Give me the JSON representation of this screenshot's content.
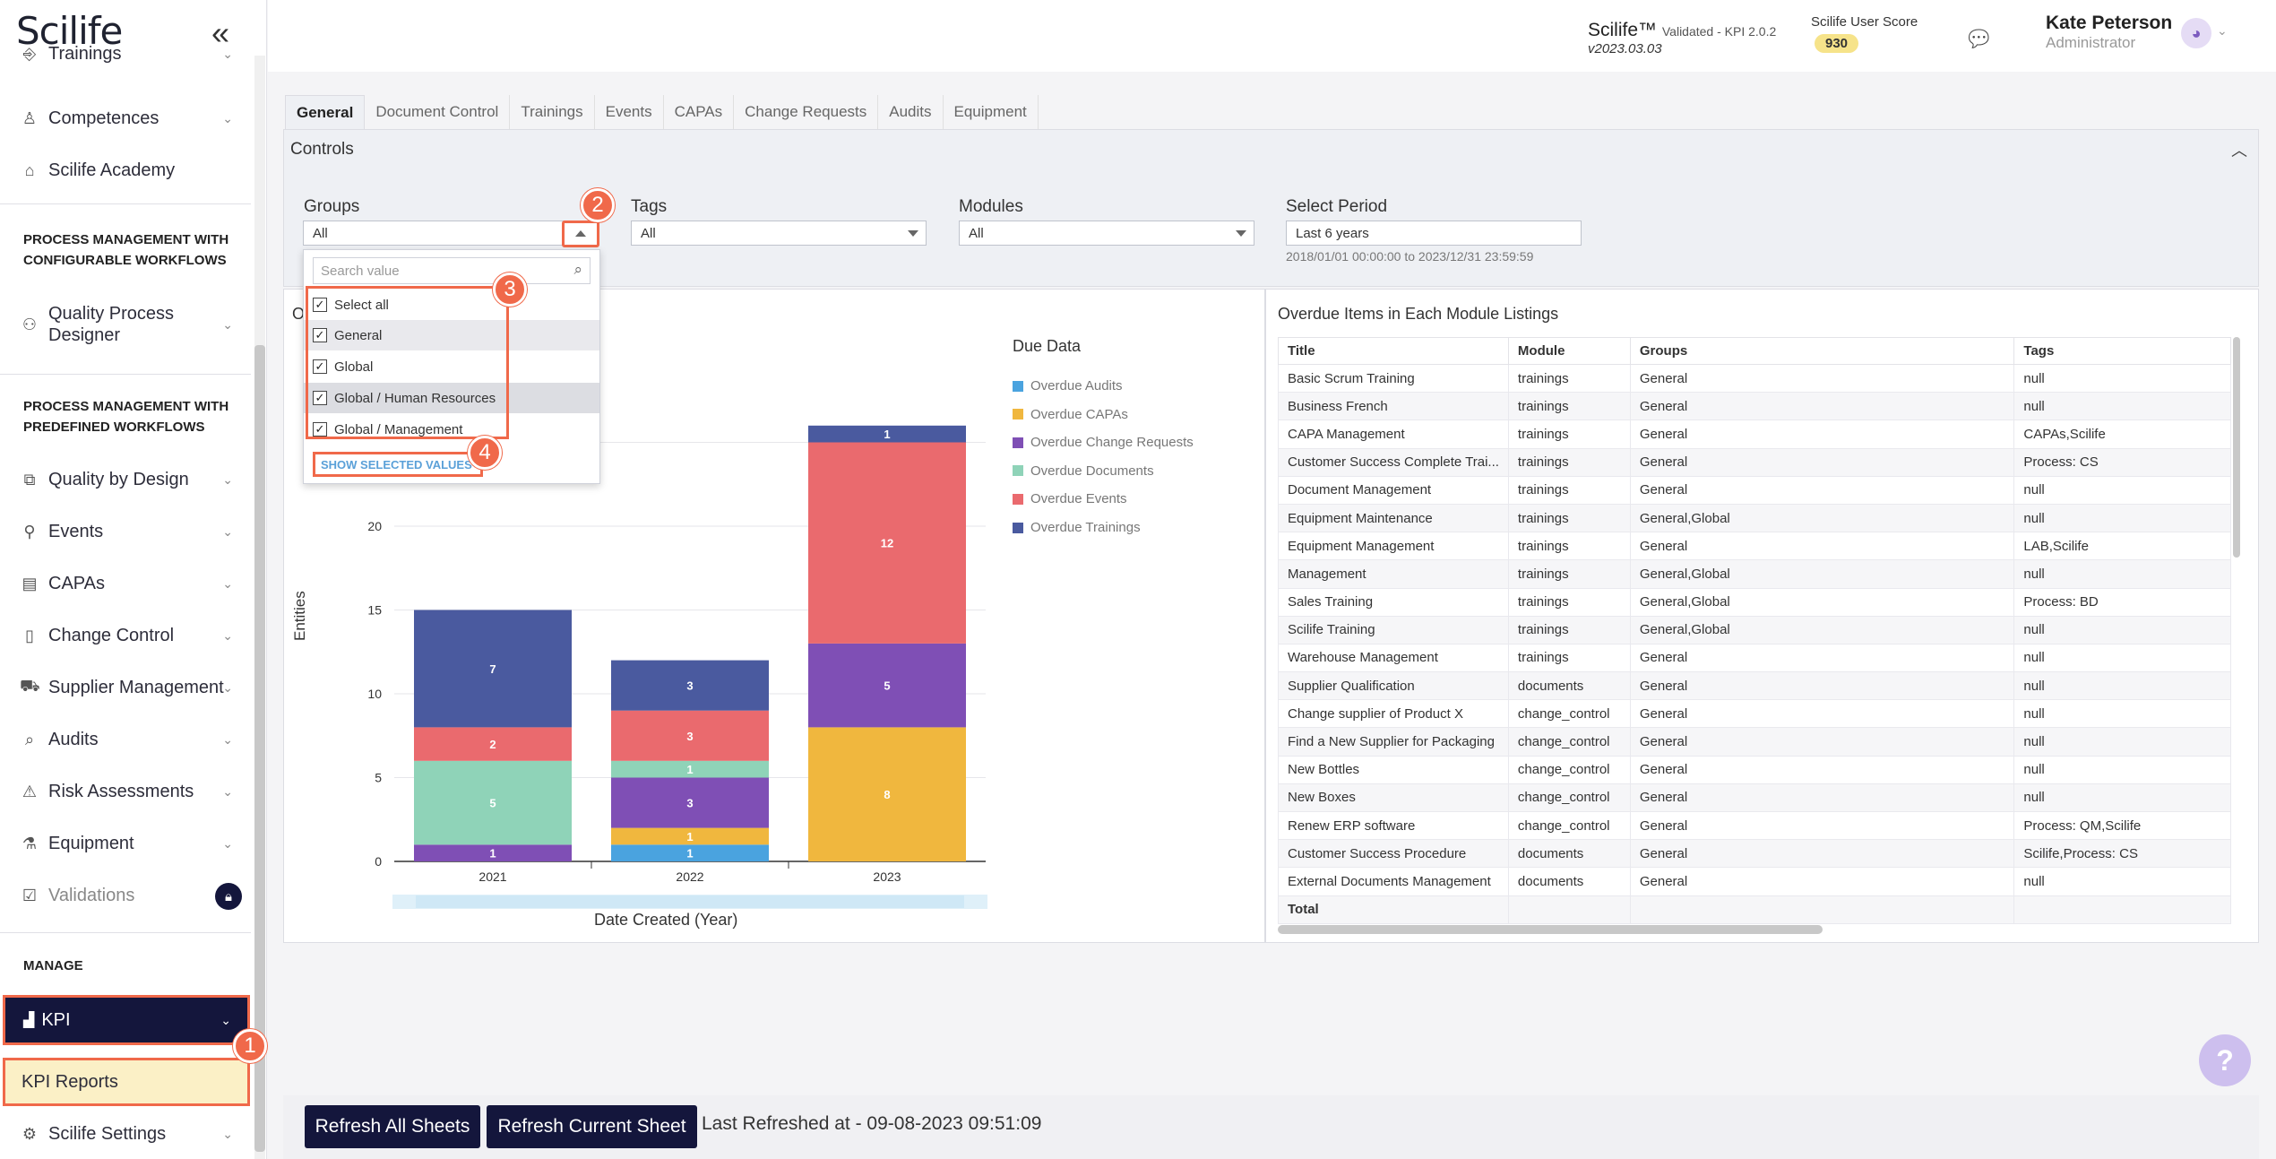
{
  "app": {
    "logo": "Scilife",
    "collapse_icon": "double-chevron-left-icon"
  },
  "sidebar": {
    "items": [
      {
        "label": "Trainings",
        "icon": "book-icon"
      },
      {
        "label": "Competences",
        "icon": "person-star-icon"
      },
      {
        "label": "Scilife Academy",
        "icon": "graduation-cap-icon"
      },
      {
        "label": "Quality Process Designer",
        "icon": "workflow-icon"
      },
      {
        "label": "Quality by Design",
        "icon": "layers-icon"
      },
      {
        "label": "Events",
        "icon": "pin-icon"
      },
      {
        "label": "CAPAs",
        "icon": "clipboard-icon"
      },
      {
        "label": "Change Control",
        "icon": "document-icon"
      },
      {
        "label": "Supplier Management",
        "icon": "truck-icon"
      },
      {
        "label": "Audits",
        "icon": "magnifier-doc-icon"
      },
      {
        "label": "Risk Assessments",
        "icon": "warning-icon"
      },
      {
        "label": "Equipment",
        "icon": "flask-icon"
      },
      {
        "label": "Validations",
        "icon": "checklist-icon"
      }
    ],
    "sections": {
      "configurable": "PROCESS MANAGEMENT WITH CONFIGURABLE WORKFLOWS",
      "predefined": "PROCESS MANAGEMENT WITH PREDEFINED WORKFLOWS",
      "manage": "MANAGE"
    },
    "kpi": "KPI",
    "kpi_reports": "KPI Reports",
    "settings": "Scilife Settings"
  },
  "header": {
    "brand": "Scilife™",
    "brand_note": "Validated - KPI 2.0.2",
    "version": "v2023.03.03",
    "score_label": "Scilife User Score",
    "score": "930",
    "user_name": "Kate Peterson",
    "user_role": "Administrator"
  },
  "tabs": [
    "General",
    "Document Control",
    "Trainings",
    "Events",
    "CAPAs",
    "Change Requests",
    "Audits",
    "Equipment"
  ],
  "controls": {
    "title": "Controls",
    "groups_label": "Groups",
    "groups_value": "All",
    "tags_label": "Tags",
    "tags_value": "All",
    "modules_label": "Modules",
    "modules_value": "All",
    "period_label": "Select Period",
    "period_value": "Last 6 years",
    "period_range": "2018/01/01 00:00:00 to 2023/12/31 23:59:59"
  },
  "dropdown": {
    "search_placeholder": "Search value",
    "options": [
      "Select all",
      "General",
      "Global",
      "Global / Human Resources",
      "Global / Management"
    ],
    "show_selected": "SHOW SELECTED VALUES"
  },
  "annotations": [
    "1",
    "2",
    "3",
    "4"
  ],
  "chart_data": {
    "type": "bar",
    "stacked": true,
    "title": "O",
    "xlabel": "Date Created (Year)",
    "ylabel": "Entities",
    "categories": [
      "2021",
      "2022",
      "2023"
    ],
    "ylim": [
      0,
      25
    ],
    "yticks": [
      0,
      5,
      10,
      15,
      20
    ],
    "legend_title": "Due Data",
    "legend_position": "right",
    "series": [
      {
        "name": "Overdue Audits",
        "color": "#4aa3df",
        "values": [
          0,
          1,
          0
        ]
      },
      {
        "name": "Overdue CAPAs",
        "color": "#f0b73e",
        "values": [
          0,
          1,
          8
        ]
      },
      {
        "name": "Overdue Change Requests",
        "color": "#7f4fb5",
        "values": [
          1,
          3,
          5
        ]
      },
      {
        "name": "Overdue Documents",
        "color": "#8fd3b8",
        "values": [
          5,
          1,
          0
        ]
      },
      {
        "name": "Overdue Events",
        "color": "#ea6a6e",
        "values": [
          2,
          3,
          12
        ]
      },
      {
        "name": "Overdue Trainings",
        "color": "#4a5a9f",
        "values": [
          7,
          3,
          1
        ]
      }
    ]
  },
  "table": {
    "title": "Overdue Items in Each Module Listings",
    "columns": [
      "Title",
      "Module",
      "Groups",
      "Tags"
    ],
    "rows": [
      [
        "Basic Scrum Training",
        "trainings",
        "General",
        "null"
      ],
      [
        "Business French",
        "trainings",
        "General",
        "null"
      ],
      [
        "CAPA Management",
        "trainings",
        "General",
        "CAPAs,Scilife"
      ],
      [
        "Customer Success Complete Trai...",
        "trainings",
        "General",
        "Process: CS"
      ],
      [
        "Document Management",
        "trainings",
        "General",
        "null"
      ],
      [
        "Equipment Maintenance",
        "trainings",
        "General,Global",
        "null"
      ],
      [
        "Equipment Management",
        "trainings",
        "General",
        "LAB,Scilife"
      ],
      [
        "Management",
        "trainings",
        "General,Global",
        "null"
      ],
      [
        "Sales Training",
        "trainings",
        "General,Global",
        "Process: BD"
      ],
      [
        "Scilife Training",
        "trainings",
        "General,Global",
        "null"
      ],
      [
        "Warehouse Management",
        "trainings",
        "General",
        "null"
      ],
      [
        "Supplier Qualification",
        "documents",
        "General",
        "null"
      ],
      [
        "Change supplier of Product X",
        "change_control",
        "General",
        "null"
      ],
      [
        "Find a New Supplier for Packaging",
        "change_control",
        "General",
        "null"
      ],
      [
        "New Bottles",
        "change_control",
        "General",
        "null"
      ],
      [
        "New Boxes",
        "change_control",
        "General",
        "null"
      ],
      [
        "Renew ERP software",
        "change_control",
        "General",
        "Process: QM,Scilife"
      ],
      [
        "Customer Success Procedure",
        "documents",
        "General",
        "Scilife,Process: CS"
      ],
      [
        "External Documents Management",
        "documents",
        "General",
        "null"
      ],
      [
        "Total",
        "",
        "",
        ""
      ]
    ]
  },
  "footer": {
    "refresh_all": "Refresh All Sheets",
    "refresh_current": "Refresh Current Sheet",
    "last_refreshed": "Last Refreshed at - 09-08-2023 09:51:09"
  },
  "help": "?"
}
